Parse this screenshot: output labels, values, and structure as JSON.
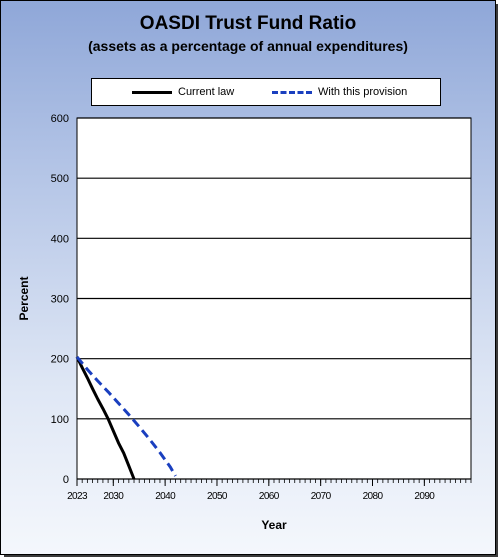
{
  "chart_data": {
    "type": "line",
    "title": "OASDI Trust Fund Ratio",
    "subtitle": "(assets as a percentage of annual expenditures)",
    "xlabel": "Year",
    "ylabel": "Percent",
    "xlim": [
      2023,
      2099
    ],
    "ylim": [
      0,
      600
    ],
    "y_ticks": [
      0,
      100,
      200,
      300,
      400,
      500,
      600
    ],
    "x_ticks": [
      2023,
      2030,
      2040,
      2050,
      2060,
      2070,
      2080,
      2090
    ],
    "grid": "horizontal",
    "legend_position": "top",
    "series": [
      {
        "name": "Current law",
        "color": "#000000",
        "style": "solid",
        "x": [
          2023,
          2024,
          2025,
          2026,
          2027,
          2028,
          2029,
          2030,
          2031,
          2032,
          2033,
          2034
        ],
        "y": [
          203,
          185,
          168,
          150,
          133,
          117,
          100,
          80,
          60,
          43,
          22,
          0
        ]
      },
      {
        "name": "With this provision",
        "color": "#1a3fbf",
        "style": "dashed",
        "x": [
          2023,
          2025,
          2027,
          2029,
          2031,
          2033,
          2035,
          2037,
          2039,
          2041,
          2042
        ],
        "y": [
          203,
          182,
          163,
          145,
          126,
          107,
          87,
          66,
          44,
          20,
          5
        ]
      }
    ]
  }
}
